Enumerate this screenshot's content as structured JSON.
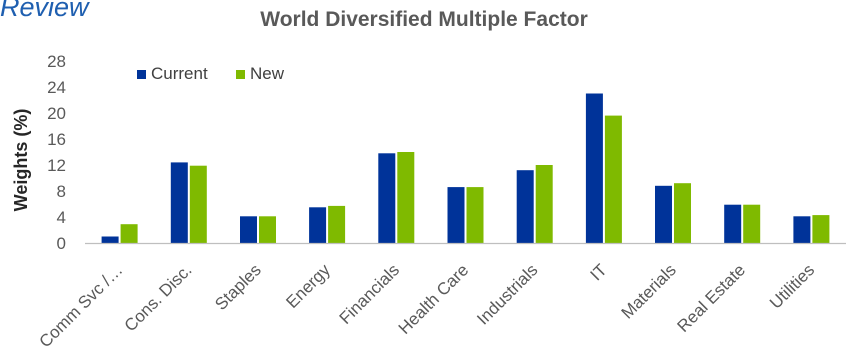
{
  "header_fragment": "Review",
  "colors": {
    "current": "#003399",
    "new": "#7fba00",
    "axis": "#bfbfbf",
    "text": "#595959"
  },
  "chart_data": {
    "type": "bar",
    "title": "World Diversified Multiple Factor",
    "ylabel": "Weights (%)",
    "xlabel": "",
    "ylim": [
      0,
      28
    ],
    "yticks": [
      0,
      4,
      8,
      12,
      16,
      20,
      24,
      28
    ],
    "grid": false,
    "legend": "top-left",
    "categories": [
      "Comm Svc /…",
      "Cons. Disc.",
      "Staples",
      "Energy",
      "Financials",
      "Health Care",
      "Industrials",
      "IT",
      "Materials",
      "Real Estate",
      "Utilities"
    ],
    "series": [
      {
        "name": "Current",
        "values": [
          1.0,
          12.4,
          4.1,
          5.5,
          13.8,
          8.6,
          11.2,
          23.0,
          8.8,
          5.9,
          4.1
        ]
      },
      {
        "name": "New",
        "values": [
          2.9,
          11.9,
          4.1,
          5.7,
          14.0,
          8.6,
          12.0,
          19.6,
          9.2,
          5.9,
          4.3
        ]
      }
    ]
  }
}
